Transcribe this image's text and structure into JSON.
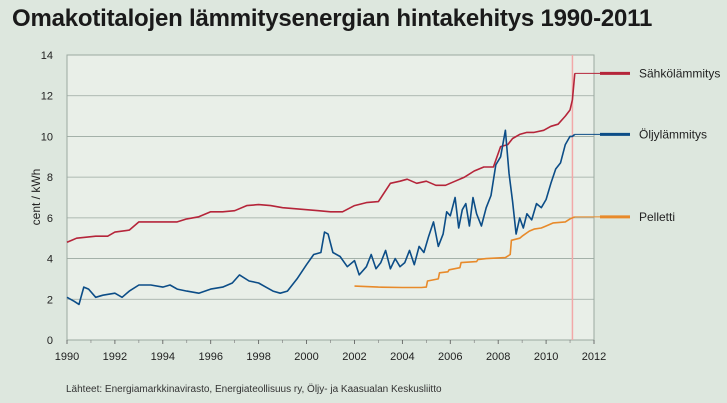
{
  "chart_data": {
    "type": "line",
    "title": "Omakotitalojen lämmitysenergian hintakehitys 1990-2011",
    "ylabel": "cent / kWh",
    "xlabel": "",
    "xlim": [
      1990,
      2012
    ],
    "ylim": [
      0,
      14
    ],
    "x_ticks": [
      "1990",
      "1992",
      "1994",
      "1996",
      "1998",
      "2000",
      "2002",
      "2004",
      "2006",
      "2008",
      "2010",
      "2012"
    ],
    "y_ticks": [
      "0",
      "2",
      "4",
      "6",
      "8",
      "10",
      "12",
      "14"
    ],
    "grid": "horizontal",
    "legend_placement": "right",
    "marker_x": 2011.1,
    "series": [
      {
        "name": "Sähkölämmitys",
        "color": "#b5253a",
        "x": [
          1990.0,
          1990.2,
          1990.4,
          1990.8,
          1991.2,
          1991.7,
          1992.0,
          1992.6,
          1993.0,
          1993.5,
          1994.0,
          1994.6,
          1995.0,
          1995.5,
          1996.0,
          1996.5,
          1997.0,
          1997.5,
          1998.0,
          1998.5,
          1999.0,
          1999.5,
          2000.0,
          2000.5,
          2001.0,
          2001.5,
          2002.0,
          2002.5,
          2003.0,
          2003.5,
          2003.9,
          2004.2,
          2004.6,
          2005.0,
          2005.4,
          2005.8,
          2006.2,
          2006.6,
          2007.0,
          2007.4,
          2007.8,
          2008.1,
          2008.4,
          2008.6,
          2008.9,
          2009.2,
          2009.5,
          2009.9,
          2010.2,
          2010.5,
          2010.8,
          2011.0,
          2011.1,
          2011.2
        ],
        "values": [
          4.8,
          4.9,
          5.0,
          5.05,
          5.1,
          5.1,
          5.3,
          5.4,
          5.8,
          5.8,
          5.8,
          5.8,
          5.95,
          6.05,
          6.3,
          6.3,
          6.35,
          6.6,
          6.65,
          6.6,
          6.5,
          6.45,
          6.4,
          6.35,
          6.3,
          6.3,
          6.6,
          6.75,
          6.8,
          7.7,
          7.8,
          7.9,
          7.7,
          7.8,
          7.6,
          7.6,
          7.8,
          8.0,
          8.3,
          8.5,
          8.5,
          9.5,
          9.6,
          9.9,
          10.1,
          10.2,
          10.2,
          10.3,
          10.5,
          10.6,
          11.0,
          11.3,
          11.8,
          13.1
        ]
      },
      {
        "name": "Öljylämmitys",
        "color": "#0c4d87",
        "x": [
          1990.0,
          1990.3,
          1990.5,
          1990.7,
          1990.9,
          1991.2,
          1991.5,
          1992.0,
          1992.3,
          1992.6,
          1993.0,
          1993.5,
          1994.0,
          1994.3,
          1994.6,
          1995.0,
          1995.5,
          1996.0,
          1996.5,
          1996.9,
          1997.2,
          1997.6,
          1998.0,
          1998.3,
          1998.6,
          1998.9,
          1999.2,
          1999.6,
          2000.0,
          2000.3,
          2000.6,
          2000.75,
          2000.9,
          2001.1,
          2001.4,
          2001.7,
          2002.0,
          2002.2,
          2002.5,
          2002.7,
          2002.9,
          2003.1,
          2003.3,
          2003.5,
          2003.7,
          2003.9,
          2004.1,
          2004.3,
          2004.5,
          2004.7,
          2004.9,
          2005.1,
          2005.3,
          2005.5,
          2005.7,
          2005.85,
          2006.0,
          2006.2,
          2006.35,
          2006.5,
          2006.65,
          2006.8,
          2006.95,
          2007.1,
          2007.3,
          2007.5,
          2007.7,
          2007.9,
          2008.1,
          2008.3,
          2008.45,
          2008.6,
          2008.75,
          2008.9,
          2009.05,
          2009.2,
          2009.4,
          2009.6,
          2009.8,
          2010.0,
          2010.2,
          2010.4,
          2010.6,
          2010.8,
          2011.0,
          2011.1,
          2011.2
        ],
        "values": [
          2.1,
          1.9,
          1.75,
          2.6,
          2.5,
          2.1,
          2.2,
          2.3,
          2.1,
          2.4,
          2.7,
          2.7,
          2.6,
          2.7,
          2.5,
          2.4,
          2.3,
          2.5,
          2.6,
          2.8,
          3.2,
          2.9,
          2.8,
          2.6,
          2.4,
          2.3,
          2.4,
          3.0,
          3.7,
          4.2,
          4.3,
          5.3,
          5.2,
          4.3,
          4.1,
          3.6,
          3.9,
          3.2,
          3.6,
          4.2,
          3.5,
          3.8,
          4.4,
          3.5,
          4.0,
          3.6,
          3.8,
          4.4,
          3.7,
          4.6,
          4.3,
          5.1,
          5.8,
          4.6,
          5.2,
          6.3,
          6.1,
          7.0,
          5.5,
          6.4,
          6.7,
          5.6,
          7.0,
          6.2,
          5.6,
          6.5,
          7.1,
          8.6,
          9.0,
          10.3,
          8.2,
          6.8,
          5.2,
          6.0,
          5.5,
          6.2,
          5.9,
          6.7,
          6.5,
          6.9,
          7.7,
          8.4,
          8.7,
          9.6,
          10.0,
          10.0,
          10.1
        ]
      },
      {
        "name": "Pelletti",
        "color": "#e88a2a",
        "x": [
          2002.0,
          2003.0,
          2004.0,
          2004.8,
          2005.0,
          2005.05,
          2005.5,
          2005.55,
          2005.9,
          2005.95,
          2006.4,
          2006.45,
          2007.1,
          2007.15,
          2007.5,
          2008.3,
          2008.5,
          2008.55,
          2008.9,
          2009.0,
          2009.3,
          2009.5,
          2009.8,
          2010.0,
          2010.3,
          2010.8,
          2011.0,
          2011.2
        ],
        "values": [
          2.65,
          2.6,
          2.58,
          2.58,
          2.6,
          2.9,
          3.0,
          3.3,
          3.35,
          3.45,
          3.55,
          3.8,
          3.85,
          3.95,
          4.0,
          4.05,
          4.2,
          4.9,
          5.0,
          5.1,
          5.35,
          5.45,
          5.5,
          5.6,
          5.75,
          5.8,
          5.95,
          6.05
        ]
      }
    ]
  },
  "source": "Lähteet: Energiamarkkinavirasto, Energiateollisuus ry, Öljy- ja Kaasualan Keskusliitto"
}
